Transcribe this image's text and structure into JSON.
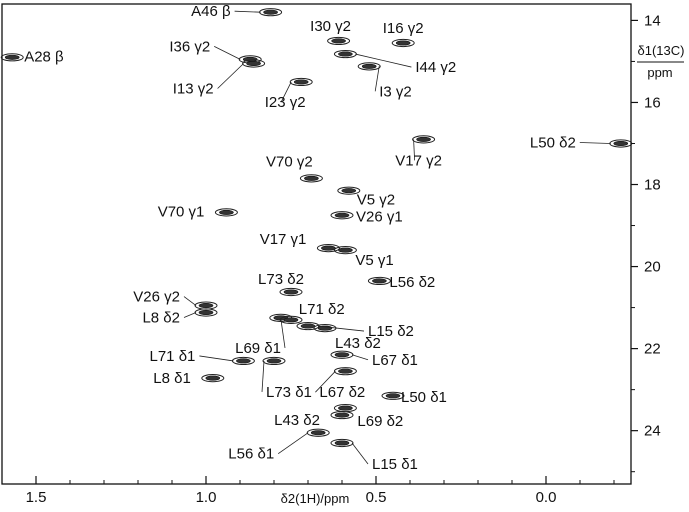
{
  "chart_data": {
    "type": "scatter",
    "xlabel": "δ2(1H)/ppm",
    "ylabel": "δ1(13C)",
    "ylabel_unit": "ppm",
    "xlim": [
      1.6,
      -0.25
    ],
    "ylim": [
      13.6,
      25.3
    ],
    "x_ticks": [
      1.5,
      1.0,
      0.5,
      0.0
    ],
    "x_tick_labels": [
      "1.5",
      "1.0",
      "0.5",
      "0.0"
    ],
    "y_ticks": [
      14,
      16,
      18,
      20,
      22,
      24
    ],
    "y_tick_labels": [
      "14",
      "16",
      "18",
      "20",
      "22",
      "24"
    ],
    "peaks": [
      {
        "x": 0.81,
        "y": 13.8,
        "label": "A46 β"
      },
      {
        "x": 1.57,
        "y": 14.9,
        "label": "A28 β"
      },
      {
        "x": 0.61,
        "y": 14.5,
        "label": "I30 γ2"
      },
      {
        "x": 0.42,
        "y": 14.55,
        "label": "I16 γ2"
      },
      {
        "x": 0.87,
        "y": 14.95,
        "label": "I36 γ2"
      },
      {
        "x": 0.86,
        "y": 15.05,
        "label": "I13 γ2"
      },
      {
        "x": 0.59,
        "y": 14.82,
        "label": "I44 γ2"
      },
      {
        "x": 0.52,
        "y": 15.12,
        "label": "I3 γ2"
      },
      {
        "x": 0.72,
        "y": 15.5,
        "label": "I23 γ2"
      },
      {
        "x": -0.22,
        "y": 17.0,
        "label": "L50 δ2"
      },
      {
        "x": 0.36,
        "y": 16.9,
        "label": "V17 γ2"
      },
      {
        "x": 0.69,
        "y": 17.85,
        "label": "V70 γ2"
      },
      {
        "x": 0.58,
        "y": 18.15,
        "label": "V5 γ2"
      },
      {
        "x": 0.94,
        "y": 18.68,
        "label": "V70 γ1"
      },
      {
        "x": 0.6,
        "y": 18.75,
        "label": "V26 γ1"
      },
      {
        "x": 0.64,
        "y": 19.55,
        "label": "V17 γ1"
      },
      {
        "x": 0.59,
        "y": 19.6,
        "label": "V5 γ1"
      },
      {
        "x": 0.75,
        "y": 20.62,
        "label": "L73 δ2"
      },
      {
        "x": 0.49,
        "y": 20.35,
        "label": "L56 δ2"
      },
      {
        "x": 1.0,
        "y": 20.95,
        "label": "V26 γ2"
      },
      {
        "x": 1.0,
        "y": 21.12,
        "label": "L8 δ2"
      },
      {
        "x": 0.78,
        "y": 21.25,
        "label": "L71 δ2"
      },
      {
        "x": 0.7,
        "y": 21.45,
        "label": "L15 δ2"
      },
      {
        "x": 0.65,
        "y": 21.5,
        "label": "L43 δ2"
      },
      {
        "x": 0.75,
        "y": 21.3,
        "label": "L69 δ1"
      },
      {
        "x": 0.89,
        "y": 22.3,
        "label": "L71 δ1"
      },
      {
        "x": 0.8,
        "y": 22.3,
        "label": "L73 δ1"
      },
      {
        "x": 0.6,
        "y": 22.15,
        "label": "L67 δ1"
      },
      {
        "x": 0.59,
        "y": 22.55,
        "label": "L67 δ2"
      },
      {
        "x": 0.98,
        "y": 22.72,
        "label": "L8 δ1"
      },
      {
        "x": 0.45,
        "y": 23.15,
        "label": "L50 δ1"
      },
      {
        "x": 0.59,
        "y": 23.45,
        "label": "L69 δ2"
      },
      {
        "x": 0.6,
        "y": 23.62,
        "label": "L43 δ2"
      },
      {
        "x": 0.67,
        "y": 24.05,
        "label": "L56 δ1"
      },
      {
        "x": 0.6,
        "y": 24.3,
        "label": "L15 δ1"
      }
    ],
    "grid": false,
    "legend": "none"
  }
}
